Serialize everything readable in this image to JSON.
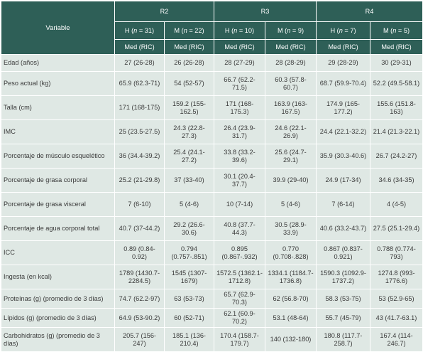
{
  "table": {
    "variable_header": "Variable",
    "groups": [
      "R2",
      "R3",
      "R4"
    ],
    "subheaders": [
      {
        "sex": "H",
        "n": "31"
      },
      {
        "sex": "M",
        "n": "22"
      },
      {
        "sex": "H",
        "n": "10"
      },
      {
        "sex": "M",
        "n": "9"
      },
      {
        "sex": "H",
        "n": "7"
      },
      {
        "sex": "M",
        "n": "5"
      }
    ],
    "n_letter": "n",
    "stat_label": "Med (RIC)",
    "rows": [
      {
        "label": "Edad (años)",
        "cells": [
          "27 (26-28)",
          "26 (26-28)",
          "28 (27-29)",
          "28 (28-29)",
          "29 (28-29)",
          "30 (29-31)"
        ]
      },
      {
        "label": "Peso actual (kg)",
        "cells": [
          "65.9 (62.3-71)",
          "54 (52-57)",
          "66.7 (62.2-71.5)",
          "60.3 (57.8-60.7)",
          "68.7 (59.9-70.4)",
          "52.2 (49.5-58.1)"
        ]
      },
      {
        "label": "Talla (cm)",
        "cells": [
          "171 (168-175)",
          "159.2 (155-162.5)",
          "171 (168-175.3)",
          "163.9 (163-167.5)",
          "174.9 (165-177.2)",
          "155.6 (151.8-163)"
        ]
      },
      {
        "label": "IMC",
        "cells": [
          "25 (23.5-27.5)",
          "24.3 (22.8-27.3)",
          "26.4 (23.9-31.7)",
          "24.6 (22.1-26.9)",
          "24.4 (22.1-32.2)",
          "21.4 (21.3-22.1)"
        ]
      },
      {
        "label": "Porcentaje de músculo esquelético",
        "cells": [
          "36 (34.4-39.2)",
          "25.4 (24.1-27.2)",
          "33.8 (33.2-39.6)",
          "25.6 (24.7-29.1)",
          "35.9 (30.3-40.6)",
          "26.7 (24.2-27)"
        ]
      },
      {
        "label": "Porcentaje de grasa corporal",
        "cells": [
          "25.2 (21-29.8)",
          "37 (33-40)",
          "30.1 (20.4-37.7)",
          "39.9 (29-40)",
          "24.9 (17-34)",
          "34.6 (34-35)"
        ]
      },
      {
        "label": "Porcentaje de grasa visceral",
        "cells": [
          "7 (6-10)",
          "5 (4-6)",
          "10 (7-14)",
          "5 (4-6)",
          "7 (6-14)",
          "4 (4-5)"
        ]
      },
      {
        "label": "Porcentaje de agua corporal total",
        "cells": [
          "40.7 (37-44.2)",
          "29.2 (26.6-30.6)",
          "40.8 (37.7-44.3)",
          "30.5 (28.9-33.9)",
          "40.6 (33.2-43.7)",
          "27.5 (25.1-29.4)"
        ]
      },
      {
        "label": "ICC",
        "cells": [
          "0.89 (0.84-0.92)",
          "0.794 (0.757-.851)",
          "0.895 (0.867-.932)",
          "0.770 (0.708-.828)",
          "0.867 (0.837-0.921)",
          "0.788 (0.774-793)"
        ]
      },
      {
        "label": "Ingesta (en kcal)",
        "cells": [
          "1789 (1430.7-2284.5)",
          "1545 (1307-1679)",
          "1572.5 (1362.1-1712.8)",
          "1334.1 (1184.7-1736.8)",
          "1590.3 (1092.9-1737.2)",
          "1274.8 (993-1776.6)"
        ]
      },
      {
        "label": "Proteínas (g) (promedio de 3 días)",
        "cells": [
          "74.7 (62.2-97)",
          "63 (53-73)",
          "65.7 (62.9-70.3)",
          "62 (56.8-70)",
          "58.3 (53-75)",
          "53 (52.9-65)"
        ]
      },
      {
        "label": "Lípidos (g) (promedio de 3 días)",
        "cells": [
          "64.9 (53-90.2)",
          "60 (52-71)",
          "62.1 (60.9-70.2)",
          "53.1 (48-64)",
          "55.7 (45-79)",
          "43 (41.7-63.1)"
        ]
      },
      {
        "label": "Carbohidratos (g) (promedio de 3 días)",
        "cells": [
          "205.7 (156-247)",
          "185.1 (136-210.4)",
          "170.4 (158.7-179.7)",
          "140 (132-180)",
          "180.8 (117.7-258.7)",
          "167.4 (114-246.7)"
        ]
      }
    ]
  }
}
